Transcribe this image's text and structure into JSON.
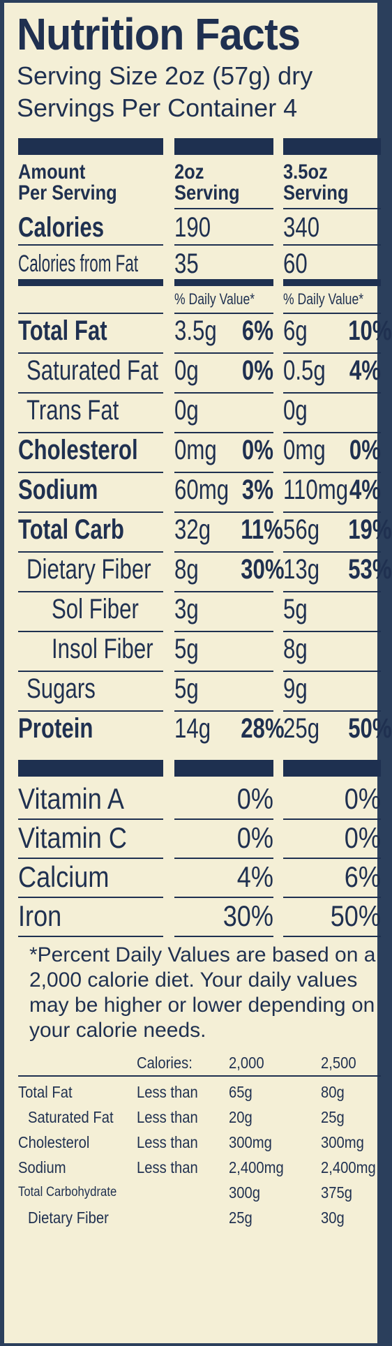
{
  "title": "Nutrition Facts",
  "serving_size": "Serving Size 2oz (57g) dry",
  "servings_per_container": "Servings Per Container 4",
  "header": {
    "amount": "Amount",
    "per_serving": "Per Serving",
    "col1_a": "2oz",
    "col1_b": "Serving",
    "col2_a": "3.5oz",
    "col2_b": "Serving"
  },
  "calories": {
    "label": "Calories",
    "v1": "190",
    "v2": "340"
  },
  "calories_fat": {
    "label": "Calories from Fat",
    "v1": "35",
    "v2": "60"
  },
  "dv_header": "% Daily Value*",
  "nutrients": [
    {
      "label": "Total Fat",
      "bold": true,
      "indent": 0,
      "a1": "3.5g",
      "p1": "6%",
      "a2": "6g",
      "p2": "10%"
    },
    {
      "label": "Saturated Fat",
      "bold": false,
      "indent": 1,
      "a1": "0g",
      "p1": "0%",
      "a2": "0.5g",
      "p2": "4%"
    },
    {
      "label": "Trans Fat",
      "bold": false,
      "indent": 1,
      "a1": "0g",
      "p1": "",
      "a2": "0g",
      "p2": ""
    },
    {
      "label": "Cholesterol",
      "bold": true,
      "indent": 0,
      "a1": "0mg",
      "p1": "0%",
      "a2": "0mg",
      "p2": "0%"
    },
    {
      "label": "Sodium",
      "bold": true,
      "indent": 0,
      "a1": "60mg",
      "p1": "3%",
      "a2": "110mg",
      "p2": "4%"
    },
    {
      "label": "Total Carb",
      "bold": true,
      "indent": 0,
      "a1": "32g",
      "p1": "11%",
      "a2": "56g",
      "p2": "19%"
    },
    {
      "label": "Dietary Fiber",
      "bold": false,
      "indent": 1,
      "a1": "8g",
      "p1": "30%",
      "a2": "13g",
      "p2": "53%"
    },
    {
      "label": "Sol Fiber",
      "bold": false,
      "indent": 2,
      "a1": "3g",
      "p1": "",
      "a2": "5g",
      "p2": ""
    },
    {
      "label": "Insol Fiber",
      "bold": false,
      "indent": 2,
      "a1": "5g",
      "p1": "",
      "a2": "8g",
      "p2": ""
    },
    {
      "label": "Sugars",
      "bold": false,
      "indent": 1,
      "a1": "5g",
      "p1": "",
      "a2": "9g",
      "p2": ""
    },
    {
      "label": "Protein",
      "bold": true,
      "indent": 0,
      "a1": "14g",
      "p1": "28%",
      "a2": "25g",
      "p2": "50%"
    }
  ],
  "vitamins": [
    {
      "label": "Vitamin A",
      "v1": "0%",
      "v2": "0%"
    },
    {
      "label": "Vitamin C",
      "v1": "0%",
      "v2": "0%"
    },
    {
      "label": "Calcium",
      "v1": "4%",
      "v2": "6%"
    },
    {
      "label": "Iron",
      "v1": "30%",
      "v2": "50%"
    }
  ],
  "footnote": "*Percent Daily Values are based on a 2,000 calorie diet. Your daily values may be higher or lower depending on your calorie needs.",
  "footer_table": {
    "calories_label": "Calories:",
    "cal1": "2,000",
    "cal2": "2,500",
    "rows": [
      {
        "label": "Total Fat",
        "cond": "Less than",
        "v1": "65g",
        "v2": "80g",
        "indent": 0
      },
      {
        "label": "Saturated Fat",
        "cond": "Less than",
        "v1": "20g",
        "v2": "25g",
        "indent": 1
      },
      {
        "label": "Cholesterol",
        "cond": "Less than",
        "v1": "300mg",
        "v2": "300mg",
        "indent": 0
      },
      {
        "label": "Sodium",
        "cond": "Less than",
        "v1": "2,400mg",
        "v2": "2,400mg",
        "indent": 0
      },
      {
        "label": "Total Carbohydrate",
        "cond": "",
        "v1": "300g",
        "v2": "375g",
        "indent": 0,
        "small": true
      },
      {
        "label": "Dietary Fiber",
        "cond": "",
        "v1": "25g",
        "v2": "30g",
        "indent": 1
      }
    ]
  }
}
